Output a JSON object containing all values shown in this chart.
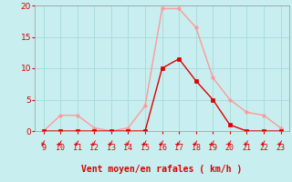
{
  "x_values": [
    9,
    10,
    11,
    12,
    13,
    14,
    15,
    16,
    17,
    18,
    19,
    20,
    21,
    22,
    23
  ],
  "vent_moyen": [
    0,
    0,
    0,
    0,
    0,
    0,
    0,
    10,
    11.5,
    8,
    5,
    1,
    0,
    0,
    0
  ],
  "rafales": [
    0,
    2.5,
    2.5,
    0.5,
    0,
    0.5,
    4,
    19.5,
    19.5,
    16.5,
    8.5,
    5,
    3,
    2.5,
    0.5
  ],
  "line_color_moyen": "#dd0000",
  "line_color_rafales": "#ff9999",
  "bg_color": "#c8eef0",
  "grid_color": "#aadddd",
  "xlabel": "Vent moyen/en rafales ( km/h )",
  "ylim": [
    0,
    20
  ],
  "xlim_min": 8.5,
  "xlim_max": 23.5,
  "yticks": [
    0,
    5,
    10,
    15,
    20
  ],
  "xticks": [
    9,
    10,
    11,
    12,
    13,
    14,
    15,
    16,
    17,
    18,
    19,
    20,
    21,
    22,
    23
  ]
}
